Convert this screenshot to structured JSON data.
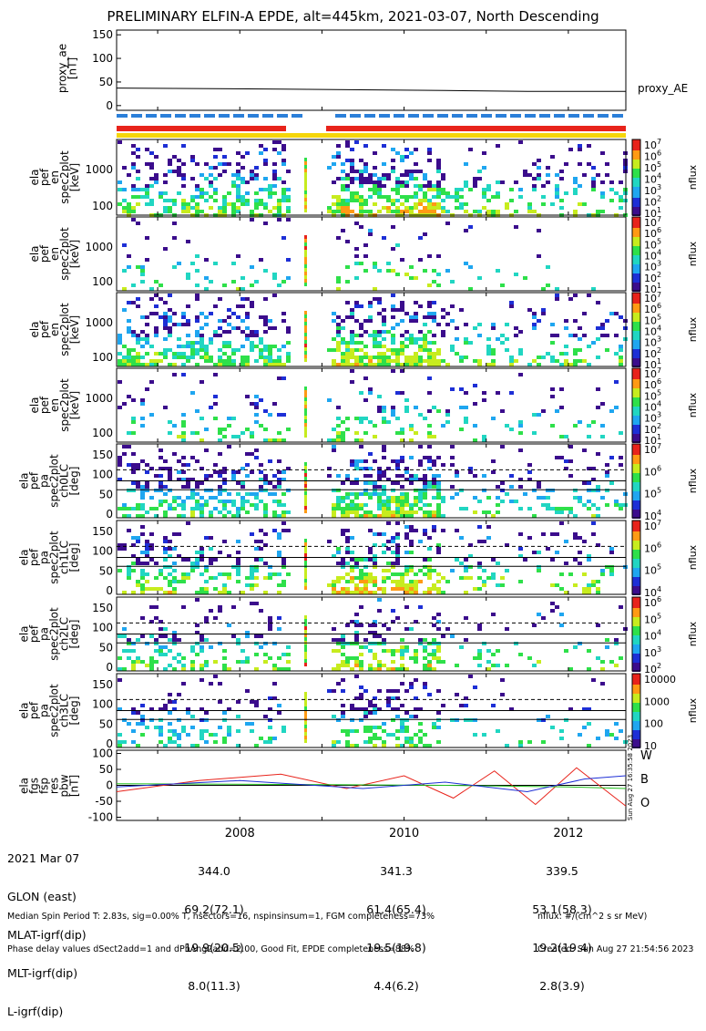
{
  "title": "PRELIMINARY ELFIN-A EPDE, alt=445km, 2021-03-07, North Descending",
  "colors": {
    "red_bar": "#e8231b",
    "blue_bar": "#2b7fd9",
    "yellow_bar": "#f5d60a",
    "w": "#e8231b",
    "b": "#22c01e",
    "o": "#1e2fd6"
  },
  "chart_data": [
    {
      "type": "line",
      "ylabel": [
        "proxy_ae",
        "[nT]"
      ],
      "yticks": [
        "150",
        "100",
        "50",
        "0"
      ],
      "ylim": [
        -10,
        160
      ],
      "series": [
        {
          "name": "proxy_AE",
          "x": [
            2006.5,
            2008.5,
            2010.5,
            2011.5,
            2012.7
          ],
          "y": [
            37,
            35,
            32,
            30,
            30
          ]
        }
      ]
    },
    {
      "type": "heatmap",
      "ylabel": [
        "ela",
        "pef",
        "en",
        "spec2plot",
        "[keV]"
      ],
      "yticks": [
        "1000",
        "100"
      ],
      "cbar_label": "nflux",
      "cbar_ticks": [
        "10",
        "10",
        "10",
        "10",
        "10",
        "10",
        "10"
      ],
      "cbar_exp": [
        "7",
        "6",
        "5",
        "4",
        "3",
        "2",
        "1"
      ]
    },
    {
      "type": "heatmap",
      "ylabel": [
        "ela",
        "pef",
        "en",
        "spec2plot",
        "[keV]"
      ],
      "yticks": [
        "1000",
        "100"
      ],
      "cbar_label": "nflux",
      "cbar_ticks": [
        "10",
        "10",
        "10",
        "10",
        "10",
        "10",
        "10"
      ],
      "cbar_exp": [
        "7",
        "6",
        "5",
        "4",
        "3",
        "2",
        "1"
      ]
    },
    {
      "type": "heatmap",
      "ylabel": [
        "ela",
        "pef",
        "en",
        "spec2plot",
        "[keV]"
      ],
      "yticks": [
        "1000",
        "100"
      ],
      "cbar_label": "nflux",
      "cbar_ticks": [
        "10",
        "10",
        "10",
        "10",
        "10",
        "10",
        "10"
      ],
      "cbar_exp": [
        "7",
        "6",
        "5",
        "4",
        "3",
        "2",
        "1"
      ]
    },
    {
      "type": "heatmap",
      "ylabel": [
        "ela",
        "pef",
        "en",
        "spec2plot",
        "[keV]"
      ],
      "yticks": [
        "1000",
        "100"
      ],
      "cbar_label": "nflux",
      "cbar_ticks": [
        "10",
        "10",
        "10",
        "10",
        "10",
        "10",
        "10"
      ],
      "cbar_exp": [
        "7",
        "6",
        "5",
        "4",
        "3",
        "2",
        "1"
      ]
    },
    {
      "type": "heatmap",
      "ylabel": [
        "ela",
        "pef",
        "pa",
        "spec2plot",
        "ch0LC",
        "[deg]"
      ],
      "yticks": [
        "150",
        "100",
        "50",
        "0"
      ],
      "cbar_label": "nflux",
      "cbar_ticks": [
        "10",
        "10",
        "10",
        "10"
      ],
      "cbar_exp": [
        "7",
        "6",
        "5",
        "4"
      ]
    },
    {
      "type": "heatmap",
      "ylabel": [
        "ela",
        "pef",
        "pa",
        "spec2plot",
        "ch1LC",
        "[deg]"
      ],
      "yticks": [
        "150",
        "100",
        "50",
        "0"
      ],
      "cbar_label": "nflux",
      "cbar_ticks": [
        "10",
        "10",
        "10",
        "10"
      ],
      "cbar_exp": [
        "7",
        "6",
        "5",
        "4"
      ]
    },
    {
      "type": "heatmap",
      "ylabel": [
        "ela",
        "pef",
        "pa",
        "spec2plot",
        "ch2LC",
        "[deg]"
      ],
      "yticks": [
        "150",
        "100",
        "50",
        "0"
      ],
      "cbar_label": "nflux",
      "cbar_ticks": [
        "10",
        "10",
        "10",
        "10",
        "10"
      ],
      "cbar_exp": [
        "6",
        "5",
        "4",
        "3",
        "2"
      ]
    },
    {
      "type": "heatmap",
      "ylabel": [
        "ela",
        "pef",
        "pa",
        "spec2plot",
        "ch3LC",
        "[deg]"
      ],
      "yticks": [
        "150",
        "100",
        "50",
        "0"
      ],
      "cbar_label": "nflux",
      "cbar_ticks": [
        "10000",
        "1000",
        "100",
        "10"
      ],
      "cbar_exp": [
        "",
        "",
        "",
        ""
      ]
    },
    {
      "type": "line",
      "ylabel": [
        "ela",
        "fgs",
        "fsp",
        "res",
        "pbw",
        "[nT]"
      ],
      "yticks": [
        "100",
        "50",
        "0",
        "-50",
        "-100"
      ],
      "ylim": [
        -110,
        110
      ],
      "legend": [
        "W",
        "B",
        "O"
      ],
      "series": [
        {
          "name": "W",
          "x": [
            2006.5,
            2007.5,
            2008.5,
            2009.3,
            2010.0,
            2010.6,
            2011.1,
            2011.6,
            2012.1,
            2012.7
          ],
          "y": [
            -20,
            15,
            35,
            -10,
            30,
            -40,
            45,
            -60,
            55,
            -65
          ]
        },
        {
          "name": "B",
          "x": [
            2006.5,
            2008.5,
            2010.5,
            2012.0,
            2012.7
          ],
          "y": [
            5,
            3,
            0,
            -5,
            -10
          ]
        },
        {
          "name": "O",
          "x": [
            2006.5,
            2008.0,
            2009.5,
            2010.5,
            2011.5,
            2012.2,
            2012.7
          ],
          "y": [
            -5,
            15,
            -10,
            10,
            -20,
            20,
            30
          ]
        }
      ]
    }
  ],
  "xtick_labels": [
    "2008",
    "2010",
    "2012"
  ],
  "right_stamp": "Sun Aug 27 16:35:58 2023",
  "footer_left": [
    "2021 Mar 07",
    "GLON (east)",
    "MLAT-igrf(dip)",
    "MLT-igrf(dip)",
    "L-igrf(dip)"
  ],
  "footer_col1": [
    "344.0",
    "69.2(72.1)",
    "19.9(20.5)",
    "8.0(11.3)"
  ],
  "footer_col2": [
    "341.3",
    "61.4(65.4)",
    "19.5(19.8)",
    "4.4(6.2)"
  ],
  "footer_col3": [
    "339.5",
    "53.1(58.3)",
    "19.2(19.4)",
    "2.8(3.9)"
  ],
  "note_line1": "Median Spin Period T: 2.83s, sig=0.00% T, nsectors=16, nspinsinsum=1, FGM completeness=73%",
  "note_line2": "Phase delay values dSect2add=1 and dPhAng2add=2.00, Good Fit, EPDE completeness=88%",
  "note_right1": "nflux: #/(cm^2 s sr MeV)",
  "note_right2": "Created: Sun Aug 27 21:54:56 2023"
}
